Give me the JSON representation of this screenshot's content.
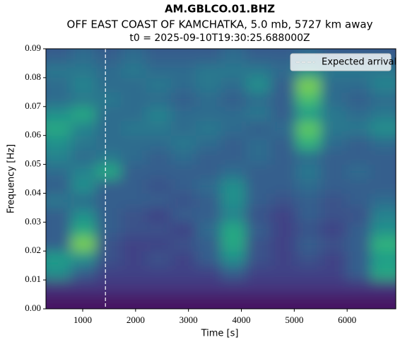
{
  "chart_data": {
    "type": "spectrogram",
    "title": "AM.GBLCO.01.BHZ",
    "subtitle": "OFF EAST COAST OF KAMCHATKA, 5.0 mb, 5727 km away",
    "subtitle2": "t0 = 2025-09-10T19:30:25.688000Z",
    "xlabel": "Time [s]",
    "ylabel": "Frequency [Hz]",
    "xlim": [
      305,
      6920
    ],
    "xticks": [
      1000,
      2000,
      3000,
      4000,
      5000,
      6000
    ],
    "ylim": [
      0,
      0.09
    ],
    "yticks": [
      {
        "value": 0,
        "label": "0.00"
      },
      {
        "value": 0.01,
        "label": "0.01"
      },
      {
        "value": 0.02,
        "label": "0.02"
      },
      {
        "value": 0.03,
        "label": "0.03"
      },
      {
        "value": 0.04,
        "label": "0.04"
      },
      {
        "value": 0.05,
        "label": "0.05"
      },
      {
        "value": 0.06,
        "label": "0.06"
      },
      {
        "value": 0.07,
        "label": "0.07"
      },
      {
        "value": 0.08,
        "label": "0.08"
      },
      {
        "value": 0.09,
        "label": "0.09"
      }
    ],
    "colormap": "viridis",
    "z": [
      [
        0.05,
        0.05,
        0.05,
        0.05,
        0.05,
        0.05,
        0.05,
        0.05,
        0.05,
        0.05,
        0.05,
        0.05,
        0.05,
        0.05
      ],
      [
        0.15,
        0.15,
        0.15,
        0.15,
        0.15,
        0.15,
        0.15,
        0.15,
        0.15,
        0.15,
        0.15,
        0.15,
        0.15,
        0.15
      ],
      [
        0.5,
        0.3,
        0.2,
        0.2,
        0.2,
        0.2,
        0.2,
        0.3,
        0.2,
        0.2,
        0.2,
        0.2,
        0.3,
        0.6
      ],
      [
        0.55,
        0.5,
        0.25,
        0.2,
        0.25,
        0.2,
        0.3,
        0.5,
        0.25,
        0.2,
        0.25,
        0.2,
        0.3,
        0.55
      ],
      [
        0.3,
        0.8,
        0.25,
        0.2,
        0.2,
        0.25,
        0.3,
        0.6,
        0.25,
        0.2,
        0.3,
        0.25,
        0.3,
        0.65
      ],
      [
        0.3,
        0.6,
        0.3,
        0.25,
        0.25,
        0.2,
        0.35,
        0.6,
        0.3,
        0.2,
        0.25,
        0.2,
        0.3,
        0.5
      ],
      [
        0.3,
        0.5,
        0.3,
        0.25,
        0.2,
        0.3,
        0.3,
        0.45,
        0.25,
        0.2,
        0.3,
        0.25,
        0.25,
        0.45
      ],
      [
        0.4,
        0.35,
        0.3,
        0.3,
        0.3,
        0.25,
        0.3,
        0.5,
        0.3,
        0.25,
        0.3,
        0.25,
        0.3,
        0.35
      ],
      [
        0.3,
        0.5,
        0.3,
        0.3,
        0.25,
        0.3,
        0.35,
        0.5,
        0.3,
        0.3,
        0.35,
        0.3,
        0.3,
        0.3
      ],
      [
        0.35,
        0.45,
        0.6,
        0.3,
        0.3,
        0.3,
        0.3,
        0.35,
        0.3,
        0.3,
        0.4,
        0.3,
        0.35,
        0.3
      ],
      [
        0.45,
        0.35,
        0.4,
        0.35,
        0.3,
        0.35,
        0.3,
        0.3,
        0.35,
        0.3,
        0.35,
        0.3,
        0.3,
        0.3
      ],
      [
        0.5,
        0.4,
        0.35,
        0.35,
        0.35,
        0.4,
        0.35,
        0.3,
        0.35,
        0.3,
        0.65,
        0.35,
        0.3,
        0.35
      ],
      [
        0.6,
        0.45,
        0.35,
        0.4,
        0.4,
        0.35,
        0.4,
        0.35,
        0.3,
        0.35,
        0.75,
        0.4,
        0.4,
        0.5
      ],
      [
        0.5,
        0.6,
        0.35,
        0.35,
        0.45,
        0.35,
        0.35,
        0.35,
        0.4,
        0.3,
        0.55,
        0.4,
        0.35,
        0.4
      ],
      [
        0.35,
        0.4,
        0.4,
        0.35,
        0.35,
        0.3,
        0.35,
        0.3,
        0.35,
        0.3,
        0.7,
        0.35,
        0.3,
        0.35
      ],
      [
        0.35,
        0.45,
        0.35,
        0.35,
        0.4,
        0.35,
        0.4,
        0.35,
        0.5,
        0.3,
        0.8,
        0.35,
        0.35,
        0.45
      ],
      [
        0.4,
        0.4,
        0.35,
        0.4,
        0.35,
        0.35,
        0.4,
        0.4,
        0.4,
        0.35,
        0.5,
        0.4,
        0.4,
        0.4
      ],
      [
        0.3,
        0.35,
        0.3,
        0.35,
        0.3,
        0.3,
        0.3,
        0.35,
        0.3,
        0.3,
        0.35,
        0.3,
        0.3,
        0.3
      ]
    ],
    "arrival": {
      "name": "Expected arrival",
      "x": 1430,
      "color": "#ffffff"
    },
    "legend": "upper right"
  }
}
